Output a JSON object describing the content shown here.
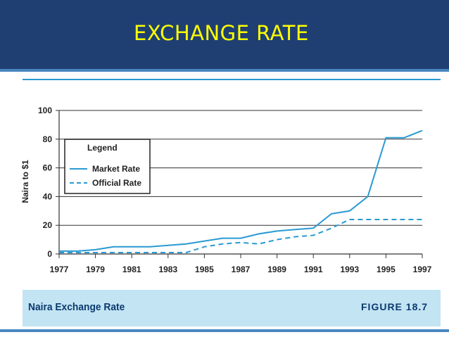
{
  "slide": {
    "title": "EXCHANGE RATE",
    "caption": "Naira Exchange Rate",
    "figure_label": "FIGURE 18.7"
  },
  "colors": {
    "header_bg": "#1f3f73",
    "title_color": "#ffff00",
    "series_color": "#2a9ad2",
    "footer_bg": "#c2e4f3"
  },
  "chart_data": {
    "type": "line",
    "title": "",
    "xlabel": "",
    "ylabel": "Naira to $1",
    "xlim": [
      1977,
      1997
    ],
    "ylim": [
      0,
      100
    ],
    "x_ticks": [
      1977,
      1979,
      1981,
      1983,
      1985,
      1987,
      1989,
      1991,
      1993,
      1995,
      1997
    ],
    "y_ticks": [
      0,
      20,
      40,
      60,
      80,
      100
    ],
    "grid": true,
    "legend": {
      "title": "Legend",
      "placement": "upper-left",
      "entries": [
        "Market Rate",
        "Official Rate"
      ]
    },
    "series": [
      {
        "name": "Market Rate",
        "style": "solid",
        "x": [
          1977,
          1978,
          1979,
          1980,
          1981,
          1982,
          1983,
          1984,
          1985,
          1986,
          1987,
          1988,
          1989,
          1990,
          1991,
          1992,
          1993,
          1994,
          1995,
          1996,
          1997
        ],
        "y": [
          2,
          2,
          3,
          5,
          5,
          5,
          6,
          7,
          9,
          11,
          11,
          14,
          16,
          17,
          18,
          28,
          30,
          40,
          81,
          81,
          86
        ]
      },
      {
        "name": "Official Rate",
        "style": "dashed",
        "x": [
          1977,
          1978,
          1979,
          1980,
          1981,
          1982,
          1983,
          1984,
          1985,
          1986,
          1987,
          1988,
          1989,
          1990,
          1991,
          1992,
          1993,
          1994,
          1995,
          1996,
          1997
        ],
        "y": [
          1,
          1,
          1,
          1,
          1,
          1,
          1,
          1,
          5,
          7,
          8,
          7,
          10,
          12,
          13,
          18,
          24,
          24,
          24,
          24,
          24
        ]
      }
    ]
  }
}
